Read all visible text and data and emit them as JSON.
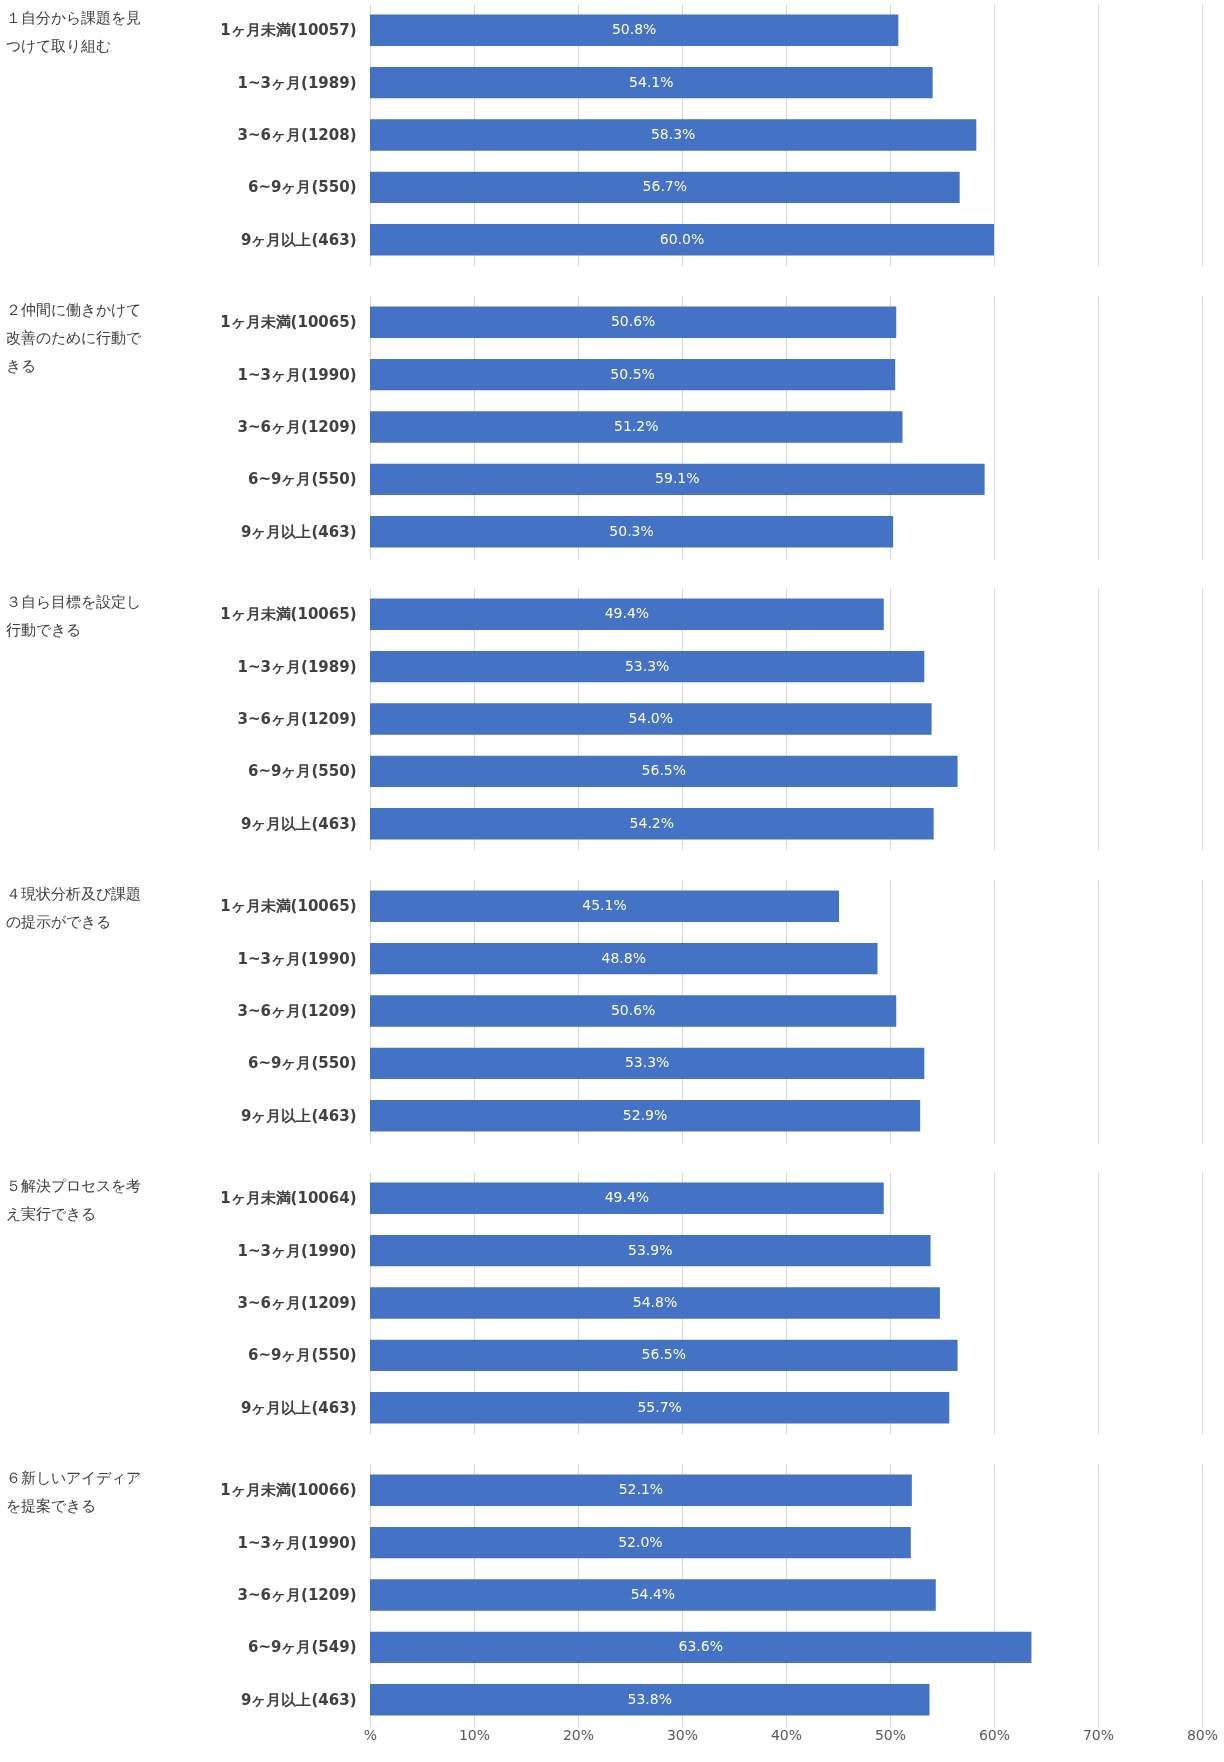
{
  "chart_data": [
    {
      "type": "bar",
      "orientation": "horizontal",
      "title": "１自分から課題を見つけて取り組む",
      "categories": [
        "1ヶ月未満(10057)",
        "1~3ヶ月(1989)",
        "3~6ヶ月(1208)",
        "6~9ヶ月(550)",
        "9ヶ月以上(463)"
      ],
      "values": [
        50.8,
        54.1,
        58.3,
        56.7,
        60.0
      ],
      "value_labels": [
        "50.8%",
        "54.1%",
        "58.3%",
        "56.7%",
        "60.0%"
      ],
      "color": "#4472c4",
      "xlim": [
        0,
        80
      ],
      "xticks": [
        0,
        10,
        20,
        30,
        40,
        50,
        60,
        70,
        80
      ],
      "grid": "x",
      "tick_labels": "y"
    },
    {
      "type": "bar",
      "orientation": "horizontal",
      "title": "２仲間に働きかけて改善のために行動できる",
      "categories": [
        "1ヶ月未満(10065)",
        "1~3ヶ月(1990)",
        "3~6ヶ月(1209)",
        "6~9ヶ月(550)",
        "9ヶ月以上(463)"
      ],
      "values": [
        50.6,
        50.5,
        51.2,
        59.1,
        50.3
      ],
      "value_labels": [
        "50.6%",
        "50.5%",
        "51.2%",
        "59.1%",
        "50.3%"
      ],
      "color": "#4472c4",
      "xlim": [
        0,
        80
      ],
      "xticks": [
        0,
        10,
        20,
        30,
        40,
        50,
        60,
        70,
        80
      ],
      "grid": "x",
      "tick_labels": "y"
    },
    {
      "type": "bar",
      "orientation": "horizontal",
      "title": "３自ら目標を設定し行動できる",
      "categories": [
        "1ヶ月未満(10065)",
        "1~3ヶ月(1989)",
        "3~6ヶ月(1209)",
        "6~9ヶ月(550)",
        "9ヶ月以上(463)"
      ],
      "values": [
        49.4,
        53.3,
        54.0,
        56.5,
        54.2
      ],
      "value_labels": [
        "49.4%",
        "53.3%",
        "54.0%",
        "56.5%",
        "54.2%"
      ],
      "color": "#4472c4",
      "xlim": [
        0,
        80
      ],
      "xticks": [
        0,
        10,
        20,
        30,
        40,
        50,
        60,
        70,
        80
      ],
      "grid": "x",
      "tick_labels": "y"
    },
    {
      "type": "bar",
      "orientation": "horizontal",
      "title": "４現状分析及び課題の提示ができる",
      "categories": [
        "1ヶ月未満(10065)",
        "1~3ヶ月(1990)",
        "3~6ヶ月(1209)",
        "6~9ヶ月(550)",
        "9ヶ月以上(463)"
      ],
      "values": [
        45.1,
        48.8,
        50.6,
        53.3,
        52.9
      ],
      "value_labels": [
        "45.1%",
        "48.8%",
        "50.6%",
        "53.3%",
        "52.9%"
      ],
      "color": "#4472c4",
      "xlim": [
        0,
        80
      ],
      "xticks": [
        0,
        10,
        20,
        30,
        40,
        50,
        60,
        70,
        80
      ],
      "grid": "x",
      "tick_labels": "y"
    },
    {
      "type": "bar",
      "orientation": "horizontal",
      "title": "５解決プロセスを考え実行できる",
      "categories": [
        "1ヶ月未満(10064)",
        "1~3ヶ月(1990)",
        "3~6ヶ月(1209)",
        "6~9ヶ月(550)",
        "9ヶ月以上(463)"
      ],
      "values": [
        49.4,
        53.9,
        54.8,
        56.5,
        55.7
      ],
      "value_labels": [
        "49.4%",
        "53.9%",
        "54.8%",
        "56.5%",
        "55.7%"
      ],
      "color": "#4472c4",
      "xlim": [
        0,
        80
      ],
      "xticks": [
        0,
        10,
        20,
        30,
        40,
        50,
        60,
        70,
        80
      ],
      "grid": "x",
      "tick_labels": "y"
    },
    {
      "type": "bar",
      "orientation": "horizontal",
      "title": "６新しいアイディアを提案できる",
      "categories": [
        "1ヶ月未満(10066)",
        "1~3ヶ月(1990)",
        "3~6ヶ月(1209)",
        "6~9ヶ月(549)",
        "9ヶ月以上(463)"
      ],
      "values": [
        52.1,
        52.0,
        54.4,
        63.6,
        53.8
      ],
      "value_labels": [
        "52.1%",
        "52.0%",
        "54.4%",
        "63.6%",
        "53.8%"
      ],
      "color": "#4472c4",
      "xlim": [
        0,
        80
      ],
      "xticks": [
        {
          "value": 0,
          "label": "%"
        },
        {
          "value": 10,
          "label": "10%"
        },
        {
          "value": 20,
          "label": "20%"
        },
        {
          "value": 30,
          "label": "30%"
        },
        {
          "value": 40,
          "label": "40%"
        },
        {
          "value": 50,
          "label": "50%"
        },
        {
          "value": 60,
          "label": "60%"
        },
        {
          "value": 70,
          "label": "70%"
        },
        {
          "value": 80,
          "label": "80%"
        }
      ],
      "grid": "x"
    }
  ]
}
